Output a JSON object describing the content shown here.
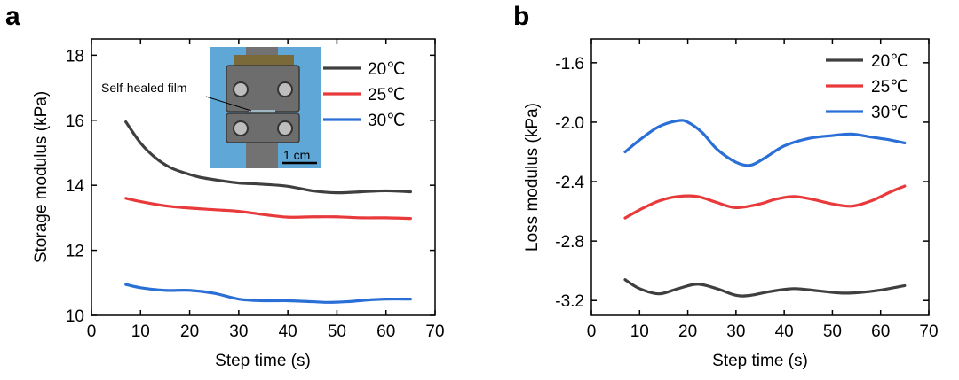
{
  "colors": {
    "t20": "#3f3f3f",
    "t25": "#e8393b",
    "t30": "#2a6fd6"
  },
  "chart_data": [
    {
      "panel": "a",
      "type": "line",
      "xlabel": "Step time (s)",
      "ylabel": "Storage modulus (kPa)",
      "xlim": [
        0,
        70
      ],
      "ylim": [
        10,
        18.5
      ],
      "xticks": [
        0,
        10,
        20,
        30,
        40,
        50,
        60,
        70
      ],
      "yticks": [
        10,
        12,
        14,
        16,
        18
      ],
      "legend": "top-right",
      "grid": false,
      "series": [
        {
          "name": "20℃",
          "color": "#3f3f3f",
          "x": [
            7,
            10,
            13,
            16,
            19,
            22,
            26,
            30,
            35,
            40,
            45,
            50,
            55,
            60,
            65
          ],
          "y": [
            15.95,
            15.3,
            14.85,
            14.55,
            14.38,
            14.25,
            14.15,
            14.07,
            14.03,
            13.97,
            13.83,
            13.77,
            13.8,
            13.83,
            13.8
          ]
        },
        {
          "name": "25℃",
          "color": "#e8393b",
          "x": [
            7,
            10,
            15,
            20,
            25,
            30,
            35,
            40,
            45,
            50,
            55,
            60,
            65
          ],
          "y": [
            13.6,
            13.5,
            13.37,
            13.3,
            13.25,
            13.2,
            13.1,
            13.02,
            13.03,
            13.03,
            13.0,
            13.0,
            12.98
          ]
        },
        {
          "name": "30℃",
          "color": "#2a6fd6",
          "x": [
            7,
            10,
            15,
            20,
            25,
            30,
            35,
            40,
            45,
            48,
            52,
            56,
            60,
            65
          ],
          "y": [
            10.95,
            10.85,
            10.77,
            10.77,
            10.68,
            10.5,
            10.45,
            10.45,
            10.42,
            10.4,
            10.42,
            10.47,
            10.5,
            10.5
          ]
        }
      ],
      "inset": {
        "annotation": "Self-healed film",
        "scale_bar": "1 cm"
      }
    },
    {
      "panel": "b",
      "type": "line",
      "xlabel": "Step time (s)",
      "ylabel": "Loss modulus (kPa)",
      "xlim": [
        0,
        70
      ],
      "ylim": [
        -3.3,
        -1.44
      ],
      "xticks": [
        0,
        10,
        20,
        30,
        40,
        50,
        60,
        70
      ],
      "yticks": [
        -3.2,
        -2.8,
        -2.4,
        -2.0,
        -1.6
      ],
      "ytick_labels": [
        "-3.2",
        "-2.8",
        "-2.4",
        "-2.0",
        "-1.6"
      ],
      "legend": "top-right",
      "grid": false,
      "series": [
        {
          "name": "20℃",
          "color": "#3f3f3f",
          "x": [
            7,
            10,
            14,
            18,
            22,
            26,
            30,
            33,
            37,
            42,
            47,
            52,
            56,
            60,
            65
          ],
          "y": [
            -3.06,
            -3.12,
            -3.155,
            -3.12,
            -3.09,
            -3.12,
            -3.165,
            -3.165,
            -3.14,
            -3.12,
            -3.135,
            -3.15,
            -3.145,
            -3.13,
            -3.1
          ]
        },
        {
          "name": "25℃",
          "color": "#e8393b",
          "x": [
            7,
            10,
            14,
            18,
            22,
            26,
            30,
            35,
            38,
            42,
            46,
            50,
            54,
            58,
            62,
            65
          ],
          "y": [
            -2.645,
            -2.59,
            -2.53,
            -2.5,
            -2.5,
            -2.54,
            -2.575,
            -2.55,
            -2.52,
            -2.5,
            -2.52,
            -2.55,
            -2.565,
            -2.53,
            -2.47,
            -2.43
          ]
        },
        {
          "name": "30℃",
          "color": "#2a6fd6",
          "x": [
            7,
            10,
            14,
            18,
            20,
            23,
            26,
            30,
            33,
            36,
            40,
            45,
            50,
            54,
            58,
            62,
            65
          ],
          "y": [
            -2.2,
            -2.12,
            -2.03,
            -1.99,
            -2.0,
            -2.07,
            -2.18,
            -2.27,
            -2.29,
            -2.24,
            -2.16,
            -2.11,
            -2.09,
            -2.08,
            -2.1,
            -2.12,
            -2.14
          ]
        }
      ]
    }
  ],
  "panels": [
    {
      "letter": "a",
      "legend": [
        "20℃",
        "25℃",
        "30℃"
      ],
      "xtick_labels": [
        "0",
        "10",
        "20",
        "30",
        "40",
        "50",
        "60",
        "70"
      ],
      "ytick_labels": [
        "10",
        "12",
        "14",
        "16",
        "18"
      ],
      "xlabel": "Step time (s)",
      "ylabel": "Storage modulus (kPa)"
    },
    {
      "letter": "b",
      "legend": [
        "20℃",
        "25℃",
        "30℃"
      ],
      "xtick_labels": [
        "0",
        "10",
        "20",
        "30",
        "40",
        "50",
        "60",
        "70"
      ],
      "ytick_labels": [
        "-3.2",
        "-2.8",
        "-2.4",
        "-2.0",
        "-1.6"
      ],
      "xlabel": "Step time (s)",
      "ylabel": "Loss modulus (kPa)"
    }
  ]
}
